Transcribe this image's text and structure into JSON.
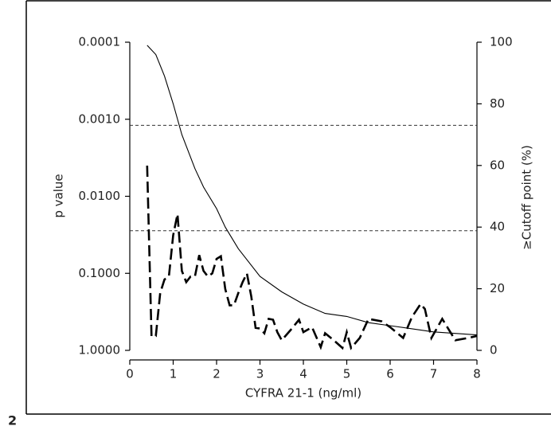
{
  "chart_data": {
    "type": "line",
    "panel_label": "2",
    "xlabel": "CYFRA 21-1 (ng/ml)",
    "ylabel": "p value",
    "y2label": "≥Cutoff point (%)",
    "xlim": [
      0,
      8
    ],
    "xticks": [
      0,
      1,
      2,
      3,
      4,
      5,
      6,
      7,
      8
    ],
    "ylim": [
      1,
      0.0001
    ],
    "ylog": true,
    "yticks": [
      {
        "value": 0.0001,
        "label": "0.0001"
      },
      {
        "value": 0.001,
        "label": "0.0010"
      },
      {
        "value": 0.01,
        "label": "0.0100"
      },
      {
        "value": 0.1,
        "label": "0.1000"
      },
      {
        "value": 1,
        "label": "1.0000"
      }
    ],
    "y2lim": [
      0,
      100
    ],
    "y2ticks": [
      0,
      20,
      40,
      60,
      80,
      100
    ],
    "hlines": [
      0.0012,
      0.028
    ],
    "series": [
      {
        "color": "#000000",
        "axis": "y2",
        "style": "solid",
        "x": [
          0.4,
          0.6,
          0.8,
          1.0,
          1.2,
          1.5,
          1.7,
          2.0,
          2.2,
          2.5,
          3.0,
          3.5,
          4.0,
          4.5,
          5.0,
          5.5,
          6.0,
          7.0,
          8.0
        ],
        "values": [
          99,
          96,
          89,
          80,
          70,
          59,
          53,
          46,
          40,
          33,
          24,
          19,
          15,
          12,
          11,
          9,
          8,
          6,
          5
        ]
      },
      {
        "color": "#000000",
        "axis": "y",
        "style": "dashed",
        "x": [
          0.4,
          0.5,
          0.6,
          0.7,
          0.8,
          0.9,
          1.0,
          1.1,
          1.2,
          1.3,
          1.4,
          1.5,
          1.6,
          1.7,
          1.8,
          1.9,
          2.0,
          2.1,
          2.2,
          2.3,
          2.4,
          2.5,
          2.6,
          2.7,
          2.8,
          2.9,
          3.0,
          3.1,
          3.2,
          3.3,
          3.4,
          3.5,
          3.7,
          3.9,
          4.0,
          4.2,
          4.4,
          4.5,
          4.7,
          4.9,
          5.0,
          5.1,
          5.3,
          5.5,
          5.8,
          6.0,
          6.3,
          6.5,
          6.7,
          6.8,
          6.95,
          7.2,
          7.5,
          7.8,
          8.0
        ],
        "values": [
          0.004,
          0.66,
          0.65,
          0.18,
          0.12,
          0.11,
          0.032,
          0.017,
          0.093,
          0.13,
          0.11,
          0.11,
          0.058,
          0.093,
          0.11,
          0.1,
          0.065,
          0.06,
          0.16,
          0.26,
          0.26,
          0.18,
          0.13,
          0.1,
          0.2,
          0.51,
          0.52,
          0.6,
          0.39,
          0.4,
          0.58,
          0.74,
          0.55,
          0.4,
          0.58,
          0.5,
          0.91,
          0.6,
          0.74,
          0.93,
          0.58,
          0.93,
          0.69,
          0.39,
          0.42,
          0.5,
          0.69,
          0.37,
          0.25,
          0.29,
          0.69,
          0.39,
          0.74,
          0.69,
          0.65
        ]
      }
    ]
  }
}
